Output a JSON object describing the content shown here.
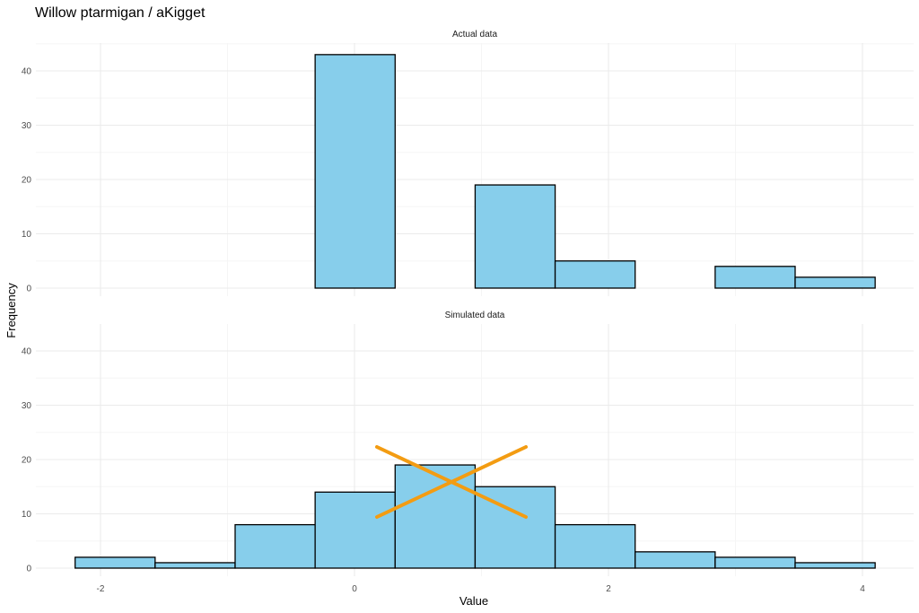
{
  "colors": {
    "bar_fill": "#87ceeb",
    "bar_stroke": "#000000",
    "grid_major": "#ebebeb",
    "grid_minor": "#f5f5f5",
    "cross_mark": "#f39c12"
  },
  "chart_data": {
    "type": "bar",
    "title": "Willow ptarmigan / aKigget",
    "xlabel": "Value",
    "ylabel": "Frequency",
    "xlim": [
      -2.5,
      4.2
    ],
    "ylim": [
      0,
      45
    ],
    "x_ticks": [
      -2,
      0,
      2,
      4
    ],
    "y_ticks": [
      0,
      10,
      20,
      30,
      40
    ],
    "grid": true,
    "bin_edges": [
      -2.2,
      -1.57,
      -0.94,
      -0.31,
      0.32,
      0.95,
      1.58,
      2.21,
      2.84,
      3.47,
      4.1
    ],
    "panels": [
      {
        "strip": "Actual data",
        "counts": [
          0,
          0,
          0,
          43,
          0,
          19,
          5,
          0,
          4,
          2
        ]
      },
      {
        "strip": "Simulated data",
        "counts": [
          2,
          1,
          8,
          14,
          19,
          15,
          8,
          3,
          2,
          1
        ],
        "annotation": "cross-out-mark"
      }
    ]
  }
}
